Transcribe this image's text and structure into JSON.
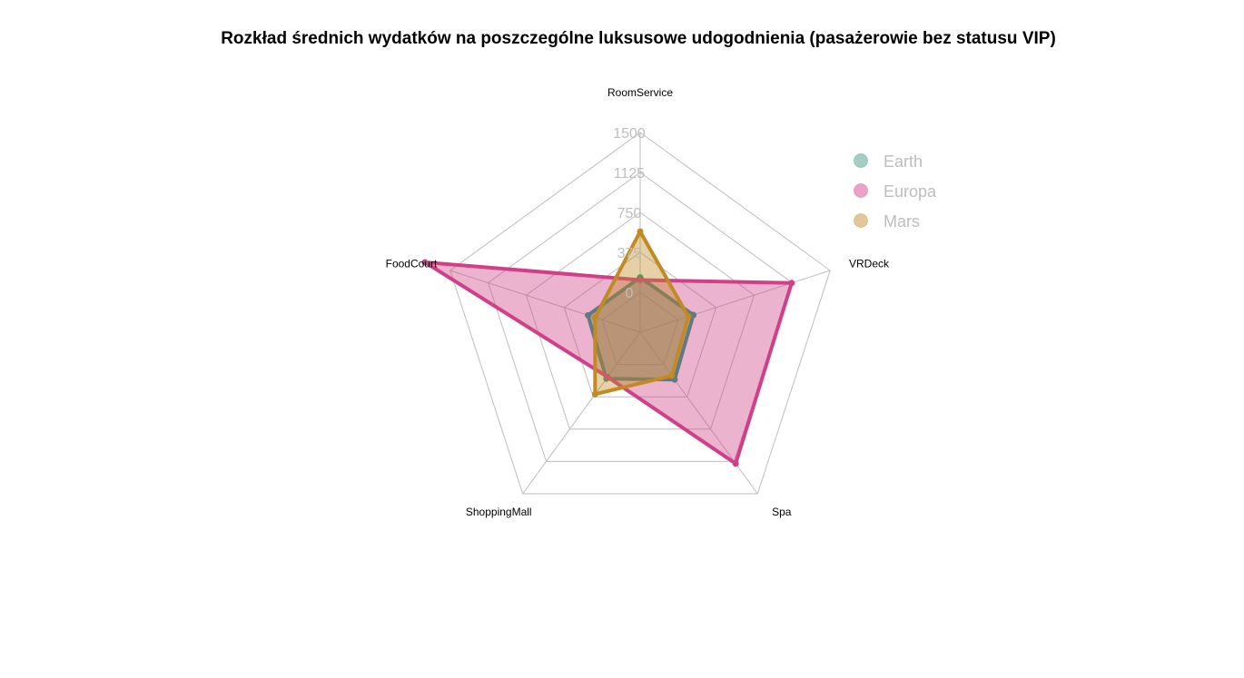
{
  "chart_data": {
    "type": "radar",
    "title": "Rozkład średnich wydatków na poszczególne luksusowe udogodnienia (pasażerowie bez statusu VIP)",
    "axes": [
      "RoomService",
      "VRDeck",
      "Spa",
      "ShoppingMall",
      "FoodCourt"
    ],
    "ticks": [
      "0",
      "375",
      "750",
      "1125",
      "1500"
    ],
    "rmin": -375,
    "rmax": 1500,
    "grid": true,
    "legend_position": "top-right",
    "series": [
      {
        "name": "Earth",
        "color": "#1b9e77",
        "marker_color": "#a6cdc4",
        "values": [
          140,
          150,
          175,
          165,
          140
        ]
      },
      {
        "name": "Europa",
        "color": "#d04088",
        "marker_color": "#eaa3c7",
        "values": [
          115,
          1120,
          1150,
          145,
          1750
        ]
      },
      {
        "name": "Mars",
        "color": "#c08a24",
        "marker_color": "#e2c79c",
        "values": [
          570,
          100,
          130,
          345,
          70
        ]
      }
    ]
  }
}
